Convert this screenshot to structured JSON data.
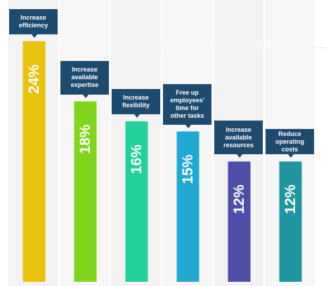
{
  "chart_data": {
    "type": "bar",
    "categories": [
      "Increase\nefficiency",
      "Increase\navailable\nexpertise",
      "Increase\nflexibility",
      "Free up\nemployees'\ntime for\nother tasks",
      "Increase\navailable\nresources",
      "Reduce\noperating\ncosts"
    ],
    "values": [
      24,
      18,
      16,
      15,
      12,
      12
    ],
    "data_labels": [
      "24%",
      "18%",
      "16%",
      "15%",
      "12%",
      "12%"
    ],
    "colors": [
      "#e8c20c",
      "#80d61c",
      "#22d09c",
      "#1fa9d2",
      "#4e4ea8",
      "#20959f"
    ],
    "ylim": [
      0,
      27
    ],
    "title": "",
    "xlabel": "",
    "ylabel": "",
    "grid": false,
    "legend": "none"
  }
}
